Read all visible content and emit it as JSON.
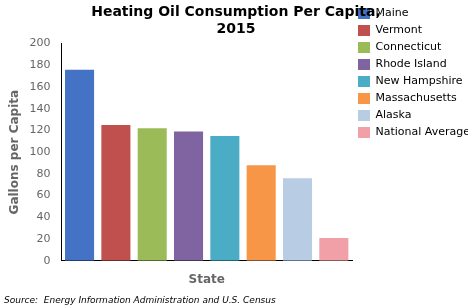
{
  "chart_data": {
    "type": "bar",
    "title": "Heating Oil Consumption Per Capita,\n2015",
    "xlabel": "State",
    "ylabel": "Gallons per Capita",
    "source": "Source:  Energy Information Administration and U.S. Census",
    "categories": [
      "Maine",
      "Vermont",
      "Connecticut",
      "Rhode Island",
      "New Hampshire",
      "Massachusetts",
      "Alaska",
      "National Average"
    ],
    "values": [
      176,
      125,
      122,
      119,
      115,
      88,
      76,
      21
    ],
    "colors": [
      "#4472c4",
      "#c0504d",
      "#9bbb59",
      "#8064a2",
      "#4bacc6",
      "#f79646",
      "#b8cce4",
      "#f2a0a8"
    ],
    "ylim": [
      0,
      200
    ],
    "yticks": [
      0,
      20,
      40,
      60,
      80,
      100,
      120,
      140,
      160,
      180,
      200
    ],
    "grid": false,
    "legend": "right",
    "tick_labels": "y"
  }
}
